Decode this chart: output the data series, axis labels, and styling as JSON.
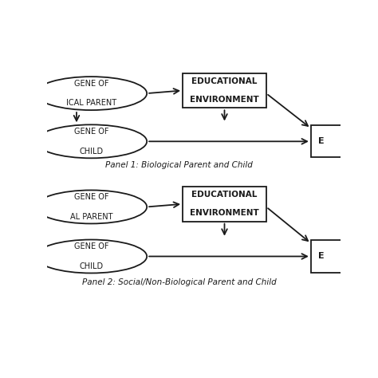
{
  "background_color": "#ffffff",
  "panel1_label": "Panel 1: Biological Parent and Child",
  "panel2_label": "Panel 2: Social/Non-Biological Parent and Child",
  "p1_ellipse1_text": [
    "GENE OF",
    "ICAL PARENT"
  ],
  "p1_ellipse2_text": [
    "GENE OF",
    "CHILD"
  ],
  "p2_ellipse1_text": [
    "GENE OF",
    "AL PARENT"
  ],
  "p2_ellipse2_text": [
    "GENE OF",
    "CHILD"
  ],
  "box_text": [
    "EDUCATIONAL",
    "ENVIRONMENT"
  ],
  "outcome_label": "E",
  "line_color": "#1a1a1a",
  "text_color": "#1a1a1a",
  "bg_color": "#ffffff"
}
